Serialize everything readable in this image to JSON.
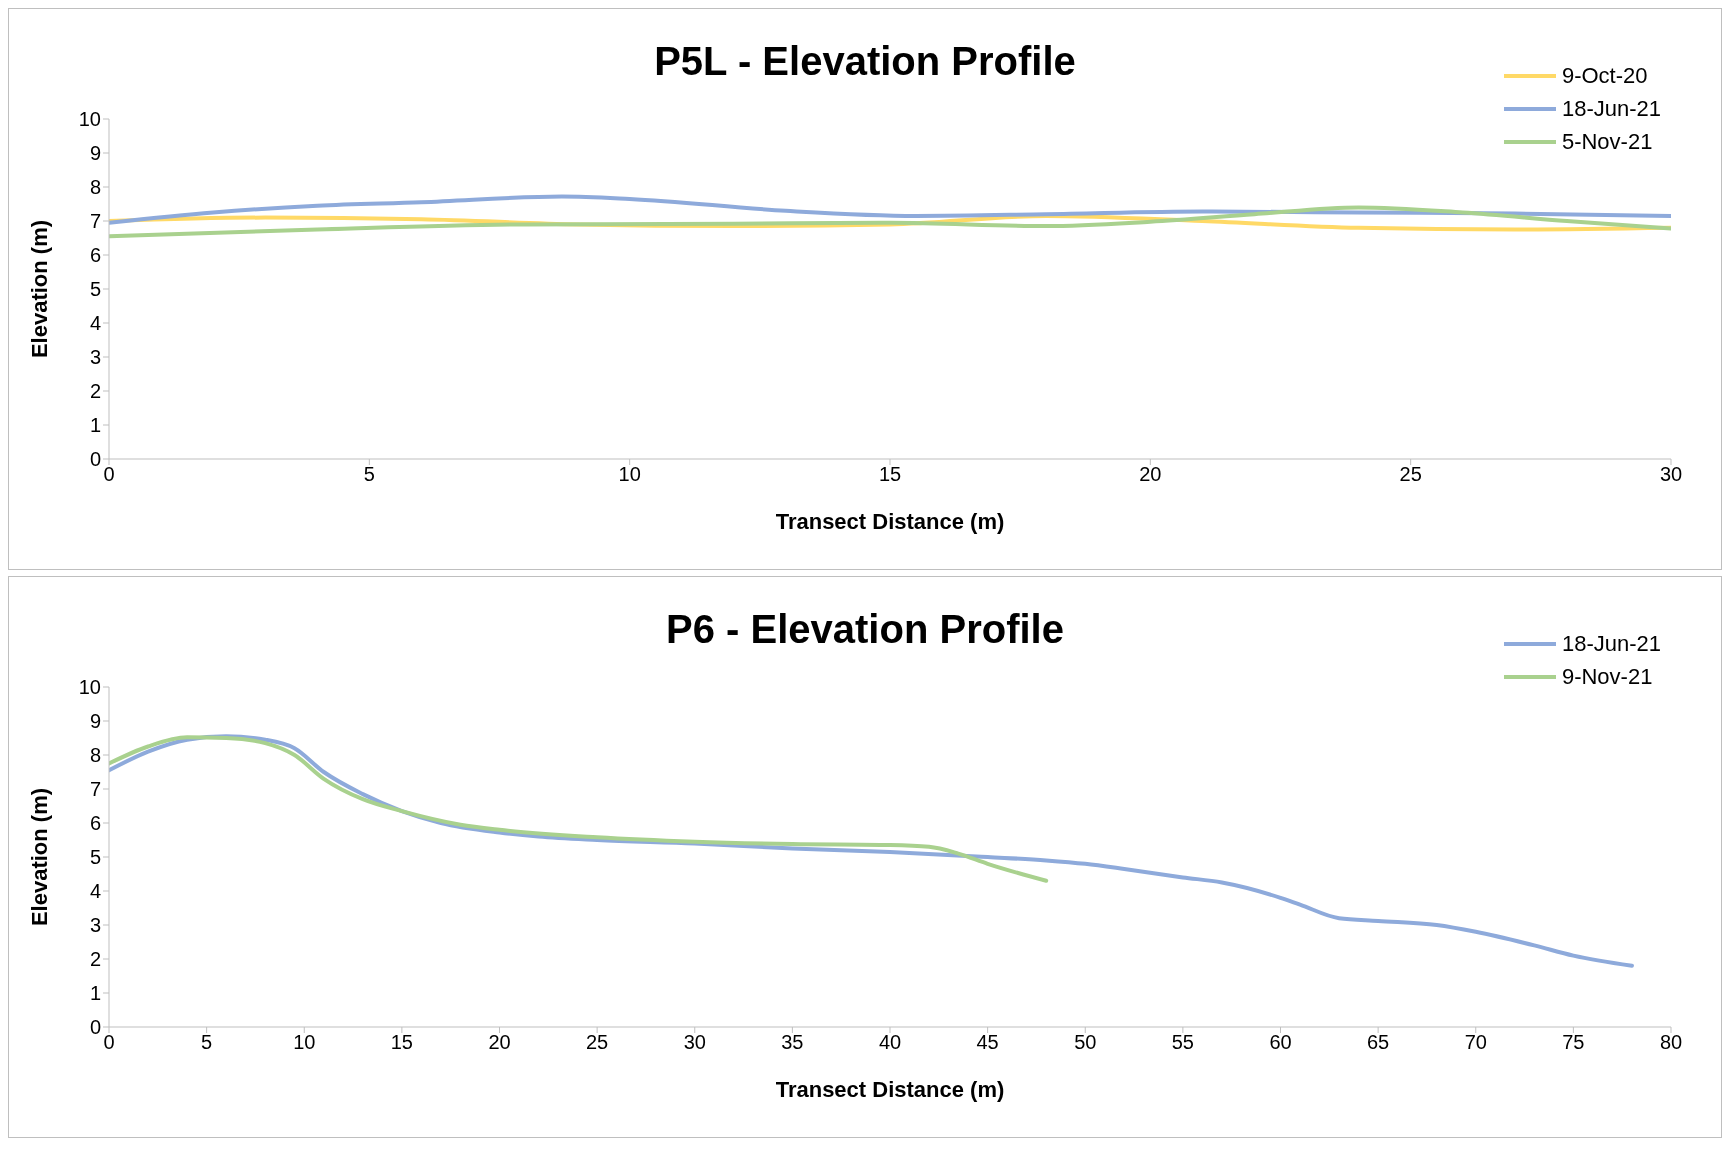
{
  "chart_data": [
    {
      "type": "line",
      "title": "P5L - Elevation Profile",
      "xlabel": "Transect Distance (m)",
      "ylabel": "Elevation (m)",
      "xlim": [
        0,
        30
      ],
      "xticks": [
        0,
        5,
        10,
        15,
        20,
        25,
        30
      ],
      "ylim": [
        0,
        10
      ],
      "yticks": [
        0,
        1,
        2,
        3,
        4,
        5,
        6,
        7,
        8,
        9,
        10
      ],
      "grid": false,
      "legend": "top right",
      "series": [
        {
          "name": "9-Oct-20",
          "color": "#ffd966",
          "x": [
            0,
            3,
            6,
            9,
            12,
            15,
            18,
            21,
            24,
            27,
            30
          ],
          "values": [
            7.0,
            7.1,
            7.05,
            6.9,
            6.85,
            6.9,
            7.15,
            7.0,
            6.8,
            6.75,
            6.8
          ]
        },
        {
          "name": "18-Jun-21",
          "color": "#8eaadb",
          "x": [
            0,
            2,
            4,
            6,
            8.7,
            10,
            13,
            15.5,
            18,
            21,
            24,
            27,
            30
          ],
          "values": [
            6.95,
            7.25,
            7.45,
            7.55,
            7.72,
            7.65,
            7.3,
            7.15,
            7.2,
            7.28,
            7.25,
            7.22,
            7.15
          ]
        },
        {
          "name": "5-Nov-21",
          "color": "#a9d18e",
          "x": [
            0,
            4,
            8,
            12,
            15,
            18,
            20,
            22,
            24,
            26,
            28,
            30
          ],
          "values": [
            6.55,
            6.75,
            6.9,
            6.92,
            6.95,
            6.85,
            6.98,
            7.2,
            7.4,
            7.25,
            7.0,
            6.78
          ]
        }
      ]
    },
    {
      "type": "line",
      "title": "P6 - Elevation Profile",
      "xlabel": "Transect Distance (m)",
      "ylabel": "Elevation (m)",
      "xlim": [
        0,
        80
      ],
      "xticks": [
        0,
        5,
        10,
        15,
        20,
        25,
        30,
        35,
        40,
        45,
        50,
        55,
        60,
        65,
        70,
        75,
        80
      ],
      "ylim": [
        0,
        10
      ],
      "yticks": [
        0,
        1,
        2,
        3,
        4,
        5,
        6,
        7,
        8,
        9,
        10
      ],
      "grid": false,
      "legend": "top right",
      "series": [
        {
          "name": "18-Jun-21",
          "color": "#8eaadb",
          "x": [
            0,
            2,
            4,
            6,
            8,
            9.5,
            11,
            13,
            15,
            17,
            20,
            22,
            25,
            30,
            35,
            40,
            45,
            48,
            50,
            52,
            55,
            57,
            60,
            61,
            63,
            65,
            68,
            70,
            73,
            75,
            78
          ],
          "values": [
            7.55,
            8.1,
            8.45,
            8.55,
            8.45,
            8.2,
            7.5,
            6.85,
            6.35,
            6.0,
            5.72,
            5.6,
            5.5,
            5.4,
            5.25,
            5.15,
            5.0,
            4.9,
            4.8,
            4.65,
            4.4,
            4.25,
            3.8,
            3.6,
            3.2,
            3.12,
            3.0,
            2.8,
            2.4,
            2.1,
            1.8
          ]
        },
        {
          "name": "9-Nov-21",
          "color": "#a9d18e",
          "x": [
            0,
            2,
            4,
            6,
            8,
            9.5,
            11,
            13,
            15,
            18,
            20,
            25,
            30,
            35,
            40,
            42,
            43.5,
            45,
            48
          ],
          "values": [
            7.75,
            8.25,
            8.52,
            8.5,
            8.35,
            8.0,
            7.3,
            6.7,
            6.35,
            5.95,
            5.8,
            5.58,
            5.45,
            5.38,
            5.35,
            5.3,
            5.1,
            4.8,
            4.3
          ]
        }
      ]
    }
  ]
}
